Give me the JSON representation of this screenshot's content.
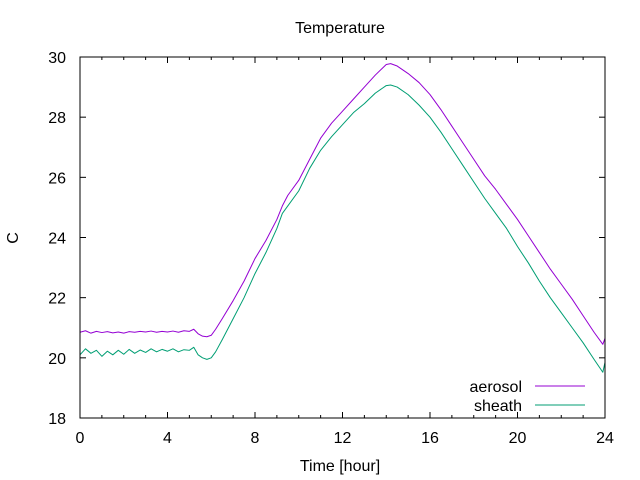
{
  "chart_data": {
    "type": "line",
    "title": "Temperature",
    "xlabel": "Time [hour]",
    "ylabel": "C",
    "xlim": [
      0,
      24
    ],
    "ylim": [
      18,
      30
    ],
    "xticks": [
      0,
      4,
      8,
      12,
      16,
      20,
      24
    ],
    "yticks": [
      18,
      20,
      22,
      24,
      26,
      28,
      30
    ],
    "xtick_labels": [
      "0",
      "4",
      "8",
      "12",
      "16",
      "20",
      "24"
    ],
    "ytick_labels": [
      "18",
      "20",
      "22",
      "24",
      "26",
      "28",
      "30"
    ],
    "grid": false,
    "legend_position": "bottom-right",
    "series": [
      {
        "name": "aerosol",
        "color": "#9400d3",
        "points": [
          [
            0.0,
            20.85
          ],
          [
            0.25,
            20.9
          ],
          [
            0.5,
            20.82
          ],
          [
            0.75,
            20.88
          ],
          [
            1.0,
            20.84
          ],
          [
            1.25,
            20.87
          ],
          [
            1.5,
            20.83
          ],
          [
            1.75,
            20.86
          ],
          [
            2.0,
            20.82
          ],
          [
            2.25,
            20.87
          ],
          [
            2.5,
            20.85
          ],
          [
            2.75,
            20.88
          ],
          [
            3.0,
            20.86
          ],
          [
            3.25,
            20.89
          ],
          [
            3.5,
            20.85
          ],
          [
            3.75,
            20.88
          ],
          [
            4.0,
            20.86
          ],
          [
            4.25,
            20.89
          ],
          [
            4.5,
            20.85
          ],
          [
            4.75,
            20.9
          ],
          [
            5.0,
            20.88
          ],
          [
            5.2,
            20.95
          ],
          [
            5.4,
            20.8
          ],
          [
            5.6,
            20.72
          ],
          [
            5.8,
            20.7
          ],
          [
            6.0,
            20.75
          ],
          [
            6.2,
            20.95
          ],
          [
            6.5,
            21.3
          ],
          [
            7.0,
            21.9
          ],
          [
            7.5,
            22.55
          ],
          [
            8.0,
            23.3
          ],
          [
            8.5,
            23.9
          ],
          [
            9.0,
            24.6
          ],
          [
            9.25,
            25.05
          ],
          [
            9.5,
            25.4
          ],
          [
            10.0,
            25.9
          ],
          [
            10.5,
            26.6
          ],
          [
            11.0,
            27.3
          ],
          [
            11.5,
            27.8
          ],
          [
            12.0,
            28.2
          ],
          [
            12.5,
            28.6
          ],
          [
            13.0,
            29.0
          ],
          [
            13.5,
            29.4
          ],
          [
            14.0,
            29.75
          ],
          [
            14.2,
            29.78
          ],
          [
            14.5,
            29.7
          ],
          [
            15.0,
            29.45
          ],
          [
            15.5,
            29.15
          ],
          [
            16.0,
            28.75
          ],
          [
            16.5,
            28.25
          ],
          [
            17.0,
            27.7
          ],
          [
            17.5,
            27.15
          ],
          [
            18.0,
            26.6
          ],
          [
            18.5,
            26.05
          ],
          [
            19.0,
            25.6
          ],
          [
            19.5,
            25.1
          ],
          [
            20.0,
            24.6
          ],
          [
            20.5,
            24.05
          ],
          [
            21.0,
            23.5
          ],
          [
            21.5,
            22.95
          ],
          [
            22.0,
            22.45
          ],
          [
            22.5,
            21.95
          ],
          [
            23.0,
            21.4
          ],
          [
            23.5,
            20.85
          ],
          [
            23.9,
            20.45
          ],
          [
            24.0,
            20.65
          ]
        ]
      },
      {
        "name": "sheath",
        "color": "#009e73",
        "points": [
          [
            0.0,
            20.1
          ],
          [
            0.25,
            20.3
          ],
          [
            0.5,
            20.15
          ],
          [
            0.75,
            20.25
          ],
          [
            1.0,
            20.05
          ],
          [
            1.25,
            20.22
          ],
          [
            1.5,
            20.1
          ],
          [
            1.75,
            20.25
          ],
          [
            2.0,
            20.12
          ],
          [
            2.25,
            20.28
          ],
          [
            2.5,
            20.15
          ],
          [
            2.75,
            20.26
          ],
          [
            3.0,
            20.18
          ],
          [
            3.25,
            20.3
          ],
          [
            3.5,
            20.2
          ],
          [
            3.75,
            20.28
          ],
          [
            4.0,
            20.22
          ],
          [
            4.25,
            20.3
          ],
          [
            4.5,
            20.2
          ],
          [
            4.75,
            20.27
          ],
          [
            5.0,
            20.25
          ],
          [
            5.2,
            20.35
          ],
          [
            5.4,
            20.1
          ],
          [
            5.6,
            20.0
          ],
          [
            5.8,
            19.95
          ],
          [
            6.0,
            20.0
          ],
          [
            6.2,
            20.2
          ],
          [
            6.5,
            20.6
          ],
          [
            7.0,
            21.3
          ],
          [
            7.5,
            22.0
          ],
          [
            8.0,
            22.8
          ],
          [
            8.5,
            23.5
          ],
          [
            9.0,
            24.3
          ],
          [
            9.25,
            24.8
          ],
          [
            9.5,
            25.05
          ],
          [
            10.0,
            25.55
          ],
          [
            10.5,
            26.3
          ],
          [
            11.0,
            26.9
          ],
          [
            11.5,
            27.35
          ],
          [
            12.0,
            27.75
          ],
          [
            12.5,
            28.15
          ],
          [
            13.0,
            28.45
          ],
          [
            13.5,
            28.8
          ],
          [
            14.0,
            29.05
          ],
          [
            14.2,
            29.07
          ],
          [
            14.5,
            29.0
          ],
          [
            15.0,
            28.75
          ],
          [
            15.5,
            28.4
          ],
          [
            16.0,
            28.0
          ],
          [
            16.5,
            27.5
          ],
          [
            17.0,
            26.95
          ],
          [
            17.5,
            26.4
          ],
          [
            18.0,
            25.85
          ],
          [
            18.5,
            25.3
          ],
          [
            19.0,
            24.8
          ],
          [
            19.5,
            24.3
          ],
          [
            20.0,
            23.7
          ],
          [
            20.5,
            23.15
          ],
          [
            21.0,
            22.55
          ],
          [
            21.5,
            22.0
          ],
          [
            22.0,
            21.5
          ],
          [
            22.5,
            21.0
          ],
          [
            23.0,
            20.5
          ],
          [
            23.5,
            19.95
          ],
          [
            23.9,
            19.52
          ],
          [
            24.0,
            19.85
          ]
        ]
      }
    ]
  }
}
